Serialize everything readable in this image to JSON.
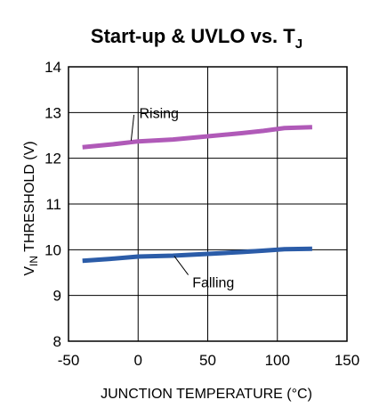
{
  "chart_data": {
    "type": "line",
    "title": {
      "main": "Start-up & UVLO vs. T",
      "subscript": "J"
    },
    "xlabel": "JUNCTION TEMPERATURE (°C)",
    "ylabel": {
      "prefix": "V",
      "subscript": "IN",
      "suffix": " THRESHOLD (V)"
    },
    "xlim": [
      -50,
      150
    ],
    "ylim": [
      8,
      14
    ],
    "x_ticks": [
      "-50",
      "0",
      "50",
      "100",
      "150"
    ],
    "y_ticks": [
      "8",
      "9",
      "10",
      "11",
      "12",
      "13",
      "14"
    ],
    "grid": true,
    "series": [
      {
        "name": "Rising",
        "color": "#b05ab8",
        "points": [
          [
            -40,
            12.24
          ],
          [
            -20,
            12.3
          ],
          [
            0,
            12.37
          ],
          [
            25,
            12.41
          ],
          [
            50,
            12.48
          ],
          [
            75,
            12.55
          ],
          [
            90,
            12.6
          ],
          [
            105,
            12.66
          ],
          [
            125,
            12.68
          ]
        ]
      },
      {
        "name": "Falling",
        "color": "#2b5ca8",
        "points": [
          [
            -40,
            9.76
          ],
          [
            -20,
            9.8
          ],
          [
            0,
            9.85
          ],
          [
            25,
            9.87
          ],
          [
            50,
            9.91
          ],
          [
            75,
            9.95
          ],
          [
            90,
            9.98
          ],
          [
            105,
            10.01
          ],
          [
            125,
            10.02
          ]
        ]
      }
    ]
  }
}
